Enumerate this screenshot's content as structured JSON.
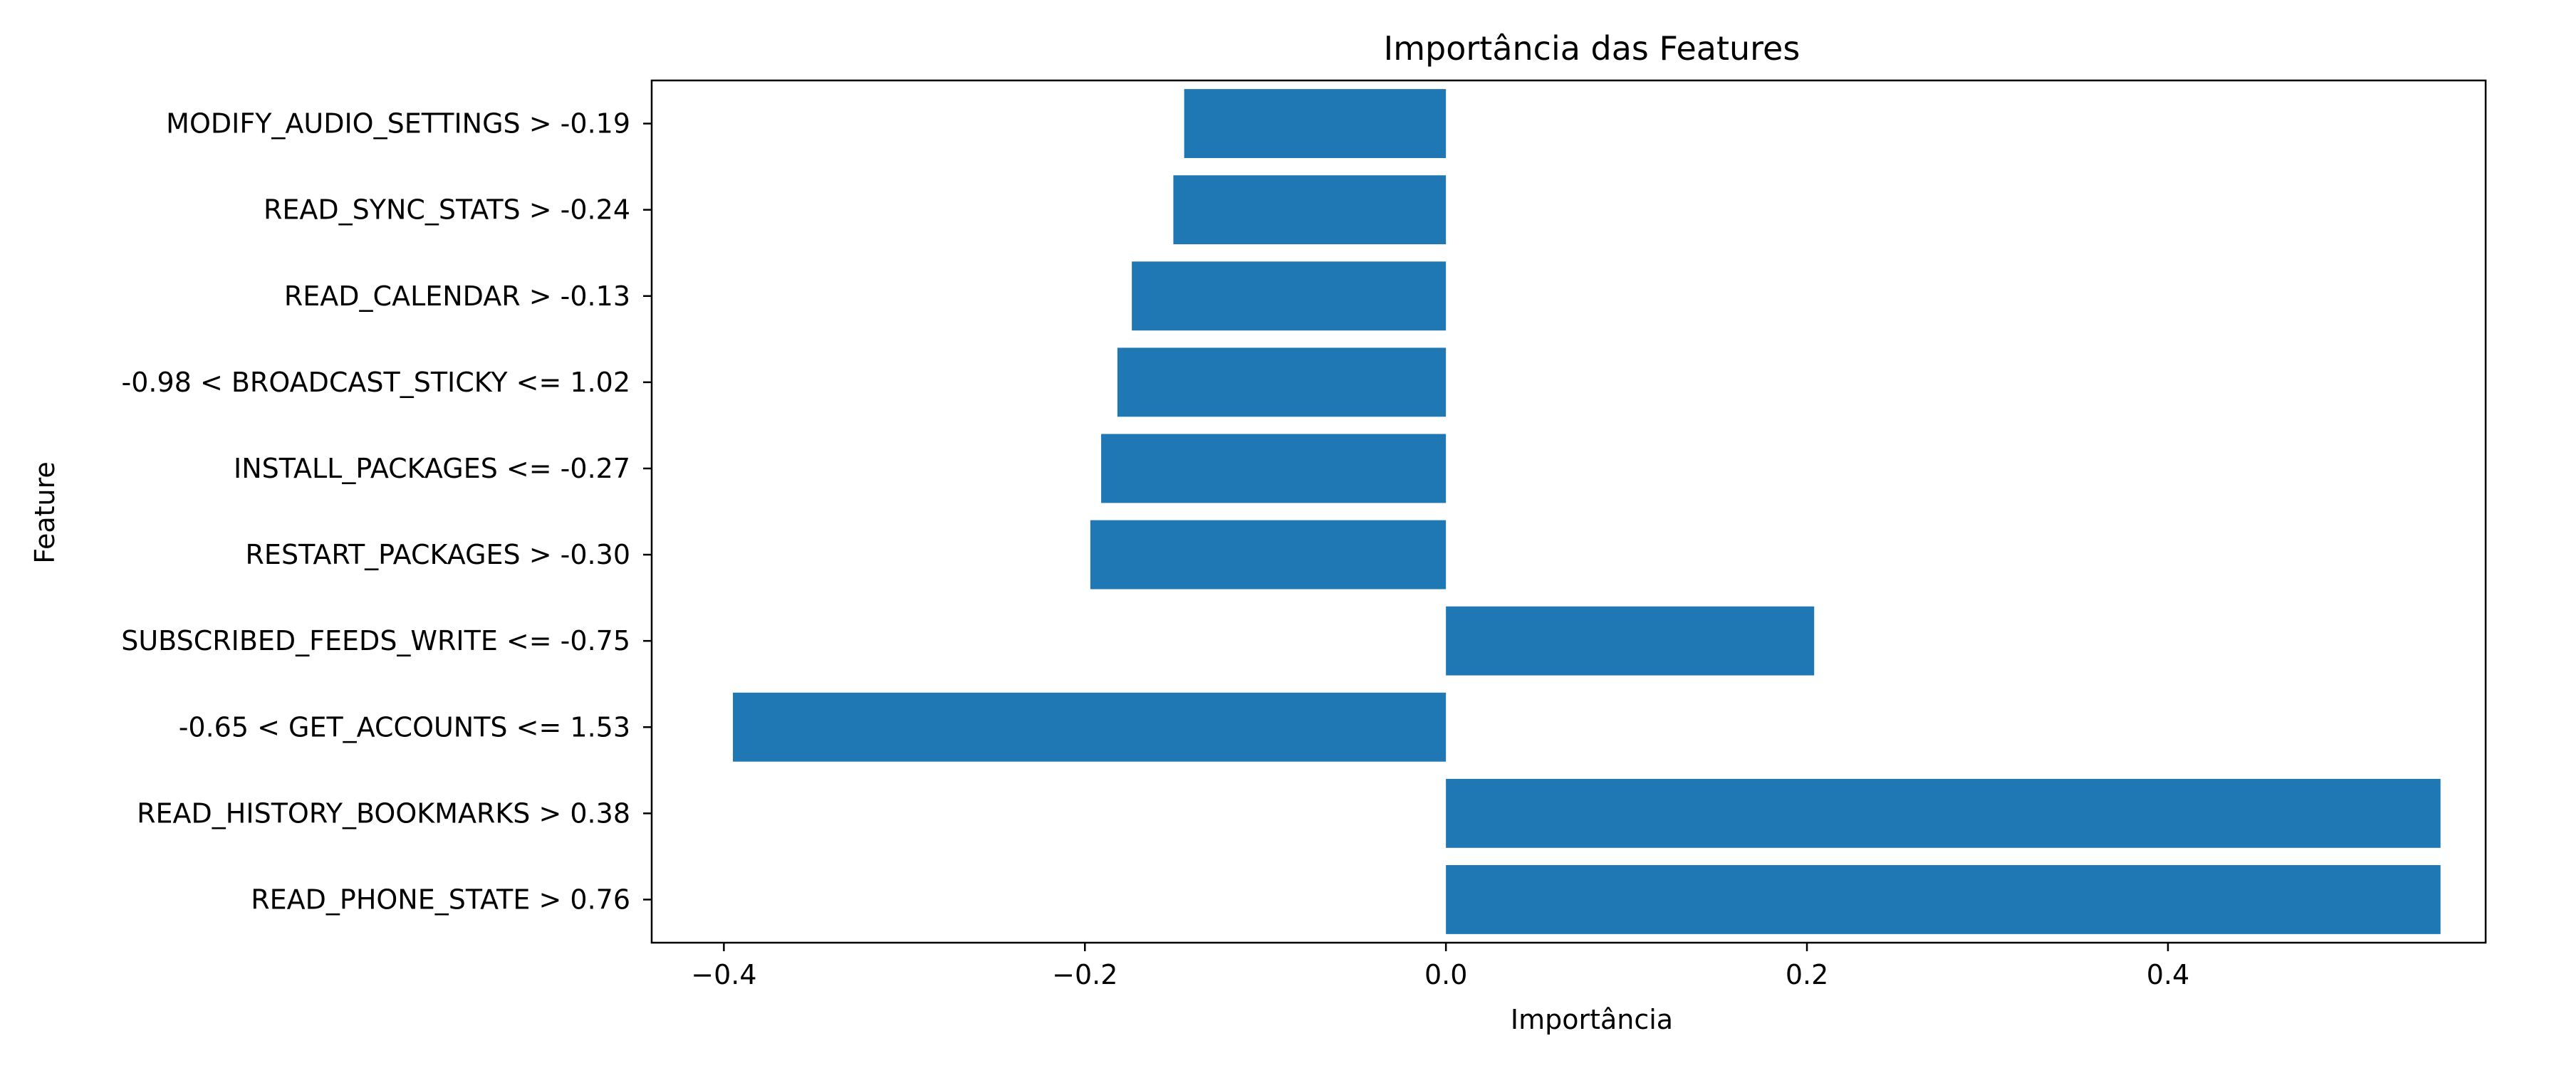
{
  "chart_data": {
    "type": "bar",
    "orientation": "horizontal",
    "title": "Importância das Features",
    "xlabel": "Importância",
    "ylabel": "Feature",
    "categories": [
      "MODIFY_AUDIO_SETTINGS > -0.19",
      "READ_SYNC_STATS > -0.24",
      "READ_CALENDAR > -0.13",
      "-0.98 < BROADCAST_STICKY <= 1.02",
      "INSTALL_PACKAGES <= -0.27",
      "RESTART_PACKAGES > -0.30",
      "SUBSCRIBED_FEEDS_WRITE <= -0.75",
      "-0.65 < GET_ACCOUNTS <= 1.53",
      "READ_HISTORY_BOOKMARKS > 0.38",
      "READ_PHONE_STATE > 0.76"
    ],
    "values": [
      -0.145,
      -0.151,
      -0.174,
      -0.182,
      -0.191,
      -0.197,
      0.204,
      -0.395,
      0.551,
      0.551
    ],
    "xlim": [
      -0.44,
      0.576
    ],
    "xticks": [
      -0.4,
      -0.2,
      0.0,
      0.2,
      0.4
    ],
    "xtick_labels": [
      "−0.4",
      "−0.2",
      "0.0",
      "0.2",
      "0.4"
    ],
    "grid": false,
    "bar_color": "#1f77b4"
  }
}
